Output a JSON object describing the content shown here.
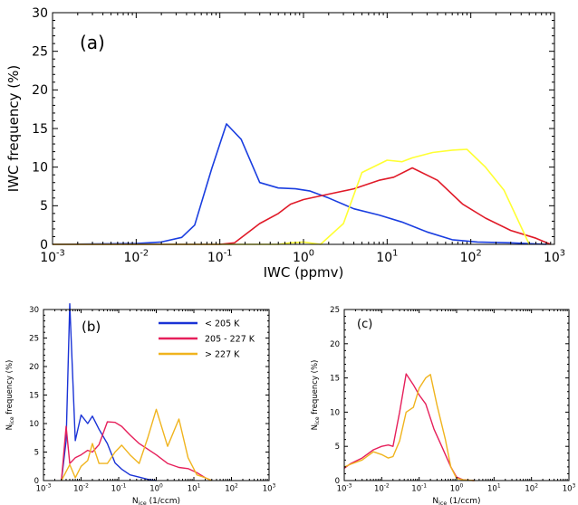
{
  "chart_data": [
    {
      "panel_label": "(a)",
      "type": "line",
      "xscale": "log",
      "xlim": [
        0.001,
        1000
      ],
      "ylim": [
        0,
        30
      ],
      "xlabel": "IWC (ppmv)",
      "ylabel": "IWC frequency (%)",
      "xticks": [
        {
          "v": 0.001,
          "b": "10",
          "e": "-3"
        },
        {
          "v": 0.01,
          "b": "10",
          "e": "-2"
        },
        {
          "v": 0.1,
          "b": "10",
          "e": "-1"
        },
        {
          "v": 1,
          "b": "10",
          "e": "0"
        },
        {
          "v": 10,
          "b": "10",
          "e": "1"
        },
        {
          "v": 100,
          "b": "10",
          "e": "2"
        },
        {
          "v": 1000,
          "b": "10",
          "e": "3"
        }
      ],
      "yticks": [
        "0",
        "5",
        "10",
        "15",
        "20",
        "25",
        "30"
      ],
      "series": [
        {
          "color": "#1a3ee0",
          "x": [
            0.001,
            0.01,
            0.02,
            0.035,
            0.05,
            0.08,
            0.12,
            0.18,
            0.3,
            0.5,
            0.8,
            1.2,
            2,
            4,
            8,
            15,
            30,
            60,
            120,
            300,
            800
          ],
          "y": [
            0,
            0.1,
            0.3,
            0.9,
            2.5,
            9.8,
            15.6,
            13.6,
            8,
            7.3,
            7.2,
            6.9,
            6,
            4.6,
            3.8,
            2.9,
            1.6,
            0.6,
            0.3,
            0.2,
            0
          ]
        },
        {
          "color": "#e01a28",
          "x": [
            0.001,
            0.1,
            0.15,
            0.3,
            0.5,
            0.7,
            1,
            2,
            4,
            8,
            12,
            20,
            40,
            80,
            150,
            300,
            600,
            900
          ],
          "y": [
            0,
            0,
            0.2,
            2.7,
            4,
            5.2,
            5.8,
            6.5,
            7.2,
            8.3,
            8.7,
            9.9,
            8.3,
            5.2,
            3.4,
            1.8,
            0.8,
            0
          ]
        },
        {
          "color": "#ffff33",
          "x": [
            0.001,
            0.5,
            0.7,
            1,
            1.6,
            3,
            5,
            10,
            15,
            20,
            35,
            60,
            90,
            150,
            250,
            500
          ],
          "y": [
            0,
            0,
            0.2,
            0.3,
            0,
            2.7,
            9.3,
            10.9,
            10.7,
            11.2,
            11.9,
            12.2,
            12.3,
            10,
            7,
            0
          ]
        }
      ]
    },
    {
      "panel_label": "(b)",
      "type": "line",
      "xscale": "log",
      "xlim": [
        0.001,
        1000
      ],
      "ylim": [
        0,
        30
      ],
      "xlabel_main": "N",
      "xlabel_sub": "ice",
      "xlabel_unit": " (1/ccm)",
      "ylabel_main": "N",
      "ylabel_sub": "ice",
      "ylabel_unit": " frequency (%)",
      "xticks": [
        {
          "v": 0.001,
          "b": "10",
          "e": "-3"
        },
        {
          "v": 0.01,
          "b": "10",
          "e": "-2"
        },
        {
          "v": 0.1,
          "b": "10",
          "e": "-1"
        },
        {
          "v": 1,
          "b": "10",
          "e": "0"
        },
        {
          "v": 10,
          "b": "10",
          "e": "1"
        },
        {
          "v": 100,
          "b": "10",
          "e": "2"
        },
        {
          "v": 1000,
          "b": "10",
          "e": "3"
        }
      ],
      "yticks": [
        "0",
        "5",
        "10",
        "15",
        "20",
        "25",
        "30"
      ],
      "legend": [
        {
          "label": "< 205 K",
          "color": "#1a33d6"
        },
        {
          "label": "205 - 227 K",
          "color": "#e61f5a"
        },
        {
          "label": "> 227 K",
          "color": "#f0b41e"
        }
      ],
      "series": [
        {
          "color": "#1a33d6",
          "x": [
            0.003,
            0.004,
            0.005,
            0.007,
            0.01,
            0.015,
            0.02,
            0.03,
            0.05,
            0.08,
            0.12,
            0.2,
            0.35,
            0.6,
            1
          ],
          "y": [
            0,
            7,
            31,
            7,
            11.5,
            10,
            11.3,
            9,
            6.5,
            3.1,
            2,
            1,
            0.6,
            0.2,
            0
          ]
        },
        {
          "color": "#e61f5a",
          "x": [
            0.003,
            0.004,
            0.005,
            0.007,
            0.01,
            0.015,
            0.02,
            0.03,
            0.05,
            0.08,
            0.12,
            0.2,
            0.35,
            0.6,
            1,
            2,
            4,
            7,
            12,
            20,
            30
          ],
          "y": [
            0,
            9.5,
            3,
            4,
            4.5,
            5.3,
            5,
            6.3,
            10.3,
            10.2,
            9.5,
            8,
            6.5,
            5.5,
            4.5,
            3,
            2.3,
            2.1,
            1.4,
            0.5,
            0
          ]
        },
        {
          "color": "#f0b41e",
          "x": [
            0.003,
            0.005,
            0.007,
            0.01,
            0.015,
            0.02,
            0.03,
            0.05,
            0.08,
            0.12,
            0.2,
            0.35,
            0.6,
            1,
            2,
            4,
            7,
            12,
            20,
            30
          ],
          "y": [
            0,
            2.8,
            0.5,
            2.5,
            3.5,
            6.5,
            3,
            3,
            5,
            6.2,
            4.5,
            3,
            7.6,
            12.5,
            6,
            10.8,
            4,
            1,
            0.5,
            0
          ]
        }
      ]
    },
    {
      "panel_label": "(c)",
      "type": "line",
      "xscale": "log",
      "xlim": [
        0.001,
        1000
      ],
      "ylim": [
        0,
        25
      ],
      "xlabel_main": "N",
      "xlabel_sub": "ice",
      "xlabel_unit": " (1/ccm)",
      "ylabel_main": "N",
      "ylabel_sub": "ice",
      "ylabel_unit": " frequency (%)",
      "xticks": [
        {
          "v": 0.001,
          "b": "10",
          "e": "-3"
        },
        {
          "v": 0.01,
          "b": "10",
          "e": "-2"
        },
        {
          "v": 0.1,
          "b": "10",
          "e": "-1"
        },
        {
          "v": 1,
          "b": "10",
          "e": "0"
        },
        {
          "v": 10,
          "b": "10",
          "e": "1"
        },
        {
          "v": 100,
          "b": "10",
          "e": "2"
        },
        {
          "v": 1000,
          "b": "10",
          "e": "3"
        }
      ],
      "yticks": [
        "0",
        "5",
        "10",
        "15",
        "20",
        "25"
      ],
      "series": [
        {
          "color": "#e61f5a",
          "x": [
            0.001,
            0.0015,
            0.003,
            0.006,
            0.01,
            0.015,
            0.02,
            0.03,
            0.045,
            0.07,
            0.1,
            0.15,
            0.25,
            0.4,
            0.7,
            1,
            1.5,
            3
          ],
          "y": [
            1.8,
            2.5,
            3.3,
            4.5,
            5,
            5.2,
            5,
            10,
            15.6,
            14,
            12.5,
            11.2,
            7.5,
            5,
            2,
            0.5,
            0.1,
            0
          ]
        },
        {
          "color": "#f0b41e",
          "x": [
            0.001,
            0.0015,
            0.003,
            0.006,
            0.01,
            0.015,
            0.02,
            0.03,
            0.045,
            0.07,
            0.1,
            0.15,
            0.2,
            0.3,
            0.5,
            0.7,
            1,
            1.5,
            3
          ],
          "y": [
            2,
            2.4,
            3,
            4.2,
            3.8,
            3.3,
            3.5,
            5.8,
            10,
            10.7,
            13.5,
            15,
            15.5,
            11,
            6,
            2,
            0.3,
            0.1,
            0
          ]
        }
      ]
    }
  ]
}
